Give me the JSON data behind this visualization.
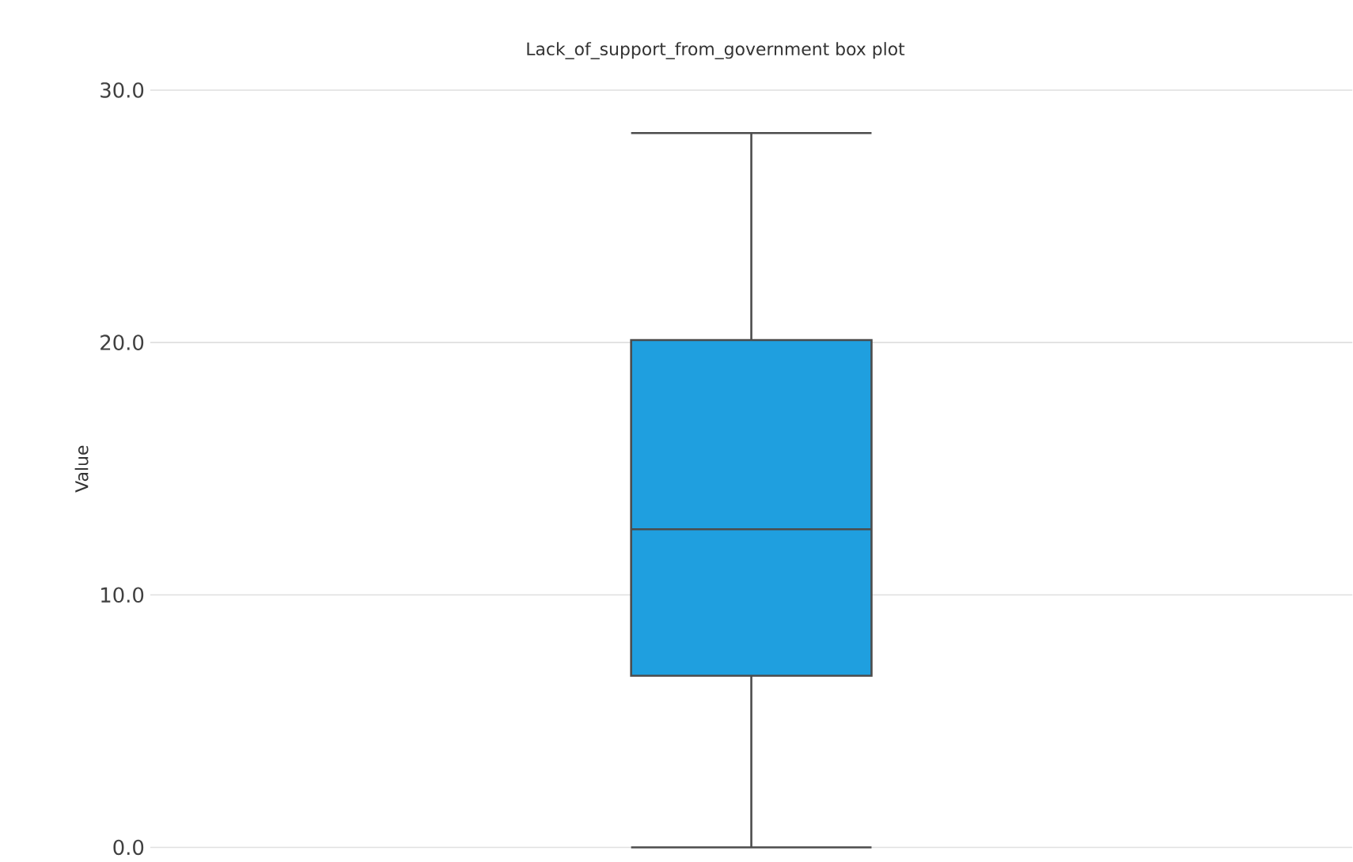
{
  "chart_data": {
    "type": "box",
    "title": "Lack_of_support_from_government box plot",
    "ylabel": "Value",
    "categories": [
      null
    ],
    "color": "#1f9fdf",
    "boxes": [
      {
        "low": 0,
        "q1": 6.8,
        "median": 12.6,
        "q3": 20.1,
        "high": 28.3
      }
    ],
    "ylim": [
      0,
      30
    ],
    "yticks": [
      {
        "value": 0,
        "label": "0.0"
      },
      {
        "value": 10,
        "label": "10.0"
      },
      {
        "value": 20,
        "label": "20.0"
      },
      {
        "value": 30,
        "label": "30.0"
      }
    ],
    "grid": "y"
  }
}
